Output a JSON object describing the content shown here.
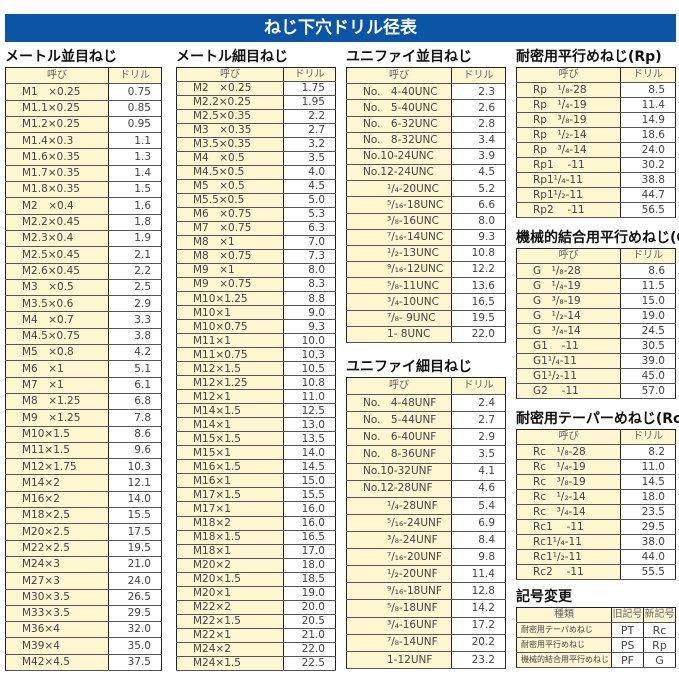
{
  "title": "ねじ下穴ドリル径表",
  "tables": [
    {
      "id": "metric-coarse",
      "title": "メートル並目ねじ",
      "headers": [
        "呼び",
        "ドリル"
      ],
      "rows": [
        [
          "M1　×0.25",
          "0.75"
        ],
        [
          "M1.1×0.25",
          "0.85"
        ],
        [
          "M1.2×0.25",
          "0.95"
        ],
        [
          "M1.4×0.3",
          "1.1"
        ],
        [
          "M1.6×0.35",
          "1.3"
        ],
        [
          "M1.7×0.35",
          "1.4"
        ],
        [
          "M1.8×0.35",
          "1.5"
        ],
        [
          "M2　×0.4",
          "1.6"
        ],
        [
          "M2.2×0.45",
          "1.8"
        ],
        [
          "M2.3×0.4",
          "1.9"
        ],
        [
          "M2.5×0.45",
          "2.1"
        ],
        [
          "M2.6×0.45",
          "2.2"
        ],
        [
          "M3　×0.5",
          "2.5"
        ],
        [
          "M3.5×0.6",
          "2.9"
        ],
        [
          "M4　×0.7",
          "3.3"
        ],
        [
          "M4.5×0.75",
          "3.8"
        ],
        [
          "M5　×0.8",
          "4.2"
        ],
        [
          "M6　×1",
          "5.1"
        ],
        [
          "M7　×1",
          "6.1"
        ],
        [
          "M8　×1.25",
          "6.8"
        ],
        [
          "M9　×1.25",
          "7.8"
        ],
        [
          "M10×1.5",
          "8.6"
        ],
        [
          "M11×1.5",
          "9.6"
        ],
        [
          "M12×1.75",
          "10.3"
        ],
        [
          "M14×2",
          "12.1"
        ],
        [
          "M16×2",
          "14.0"
        ],
        [
          "M18×2.5",
          "15.5"
        ],
        [
          "M20×2.5",
          "17.5"
        ],
        [
          "M22×2.5",
          "19.5"
        ],
        [
          "M24×3",
          "21.0"
        ],
        [
          "M27×3",
          "24.0"
        ],
        [
          "M30×3.5",
          "26.5"
        ],
        [
          "M33×3.5",
          "29.5"
        ],
        [
          "M36×4",
          "32.0"
        ],
        [
          "M39×4",
          "35.0"
        ],
        [
          "M42×4.5",
          "37.5"
        ]
      ]
    },
    {
      "id": "metric-fine",
      "title": "メートル細目ねじ",
      "headers": [
        "呼び",
        "ドリル"
      ],
      "rows": [
        [
          "M2　×0.25",
          "1.75"
        ],
        [
          "M2.2×0.25",
          "1.95"
        ],
        [
          "M2.5×0.35",
          "2.2"
        ],
        [
          "M3　×0.35",
          "2.7"
        ],
        [
          "M3.5×0.35",
          "3.2"
        ],
        [
          "M4　×0.5",
          "3.5"
        ],
        [
          "M4.5×0.5",
          "4.0"
        ],
        [
          "M5　×0.5",
          "4.5"
        ],
        [
          "M5.5×0.5",
          "5.0"
        ],
        [
          "M6　×0.75",
          "5.3"
        ],
        [
          "M7　×0.75",
          "6.3"
        ],
        [
          "M8　×1",
          "7.0"
        ],
        [
          "M8　×0.75",
          "7.3"
        ],
        [
          "M9　×1",
          "8.0"
        ],
        [
          "M9　×0.75",
          "8.3"
        ],
        [
          "M10×1.25",
          "8.8"
        ],
        [
          "M10×1",
          "9.0"
        ],
        [
          "M10×0.75",
          "9.3"
        ],
        [
          "M11×1",
          "10.0"
        ],
        [
          "M11×0.75",
          "10.3"
        ],
        [
          "M12×1.5",
          "10.5"
        ],
        [
          "M12×1.25",
          "10.8"
        ],
        [
          "M12×1",
          "11.0"
        ],
        [
          "M14×1.5",
          "12.5"
        ],
        [
          "M14×1",
          "13.0"
        ],
        [
          "M15×1.5",
          "13.5"
        ],
        [
          "M15×1",
          "14.0"
        ],
        [
          "M16×1.5",
          "14.5"
        ],
        [
          "M16×1",
          "15.0"
        ],
        [
          "M17×1.5",
          "15.5"
        ],
        [
          "M17×1",
          "16.0"
        ],
        [
          "M18×2",
          "16.0"
        ],
        [
          "M18×1.5",
          "16.5"
        ],
        [
          "M18×1",
          "17.0"
        ],
        [
          "M20×2",
          "18.0"
        ],
        [
          "M20×1.5",
          "18.5"
        ],
        [
          "M20×1",
          "19.0"
        ],
        [
          "M22×2",
          "20.0"
        ],
        [
          "M22×1.5",
          "20.5"
        ],
        [
          "M22×1",
          "21.0"
        ],
        [
          "M24×2",
          "22.0"
        ],
        [
          "M24×1.5",
          "22.5"
        ]
      ]
    },
    {
      "id": "unc",
      "title": "ユニファイ並目ねじ",
      "headers": [
        "呼び",
        "ドリル"
      ],
      "rows": [
        [
          "No.　4-40UNC",
          "2.3"
        ],
        [
          "No.　5-40UNC",
          "2.6"
        ],
        [
          "No.　6-32UNC",
          "2.8"
        ],
        [
          "No.　8-32UNC",
          "3.4"
        ],
        [
          "No.10-24UNC",
          "3.9"
        ],
        [
          "No.12-24UNC",
          "4.5"
        ],
        [
          "¹/₄-20UNC",
          "5.2"
        ],
        [
          "⁵/₁₆-18UNC",
          "6.6"
        ],
        [
          "³/₈-16UNC",
          "8.0"
        ],
        [
          "⁷/₁₆-14UNC",
          "9.3"
        ],
        [
          "¹/₂-13UNC",
          "10.8"
        ],
        [
          "⁹/₁₆-12UNC",
          "12.2"
        ],
        [
          "⁵/₈-11UNC",
          "13.6"
        ],
        [
          "³/₄-10UNC",
          "16.5"
        ],
        [
          "⁷/₈- 9UNC",
          "19.5"
        ],
        [
          "1- 8UNC",
          "22.0"
        ]
      ]
    },
    {
      "id": "unf",
      "title": "ユニファイ細目ねじ",
      "headers": [
        "呼び",
        "ドリル"
      ],
      "rows": [
        [
          "No.　4-48UNF",
          "2.4"
        ],
        [
          "No.　5-44UNF",
          "2.7"
        ],
        [
          "No.　6-40UNF",
          "2.9"
        ],
        [
          "No.　8-36UNF",
          "3.5"
        ],
        [
          "No.10-32UNF",
          "4.1"
        ],
        [
          "No.12-28UNF",
          "4.6"
        ],
        [
          "¹/₄-28UNF",
          "5.4"
        ],
        [
          "⁵/₁₆-24UNF",
          "6.9"
        ],
        [
          "³/₈-24UNF",
          "8.4"
        ],
        [
          "⁷/₁₆-20UNF",
          "9.8"
        ],
        [
          "¹/₂-20UNF",
          "11.4"
        ],
        [
          "⁹/₁₆-18UNF",
          "12.8"
        ],
        [
          "⁵/₈-18UNF",
          "14.2"
        ],
        [
          "³/₄-16UNF",
          "17.2"
        ],
        [
          "⁷/₈-14UNF",
          "20.2"
        ],
        [
          "1-12UNF",
          "23.2"
        ]
      ]
    },
    {
      "id": "rp",
      "title": "耐密用平行めねじ(Rp)",
      "headers": [
        "呼び",
        "ドリル"
      ],
      "rows": [
        [
          "Rp　¹/₈-28",
          "8.5"
        ],
        [
          "Rp　¹/₄-19",
          "11.4"
        ],
        [
          "Rp　³/₈-19",
          "14.9"
        ],
        [
          "Rp　¹/₂-14",
          "18.6"
        ],
        [
          "Rp　³/₄-14",
          "24.0"
        ],
        [
          "Rp1　 -11",
          "30.2"
        ],
        [
          "Rp1¹/₄-11",
          "38.8"
        ],
        [
          "Rp1¹/₂-11",
          "44.7"
        ],
        [
          "Rp2　 -11",
          "56.5"
        ]
      ]
    },
    {
      "id": "g",
      "title": "機械的結合用平行めねじ(G)",
      "headers": [
        "呼び",
        "ドリル"
      ],
      "rows": [
        [
          "G　¹/₈-28",
          "8.6"
        ],
        [
          "G　¹/₄-19",
          "11.5"
        ],
        [
          "G　³/₈-19",
          "15.0"
        ],
        [
          "G　¹/₂-14",
          "19.0"
        ],
        [
          "G　³/₄-14",
          "24.5"
        ],
        [
          "G1　 -11",
          "30.5"
        ],
        [
          "G1¹/₄-11",
          "39.0"
        ],
        [
          "G1¹/₂-11",
          "45.0"
        ],
        [
          "G2　 -11",
          "57.0"
        ]
      ]
    },
    {
      "id": "rc",
      "title": "耐密用テーパーめねじ(Rc)",
      "headers": [
        "呼び",
        "ドリル"
      ],
      "rows": [
        [
          "Rc　¹/₈-28",
          "8.2"
        ],
        [
          "Rc　¹/₄-19",
          "11.0"
        ],
        [
          "Rc　³/₈-19",
          "14.5"
        ],
        [
          "Rc　¹/₂-14",
          "18.0"
        ],
        [
          "Rc　³/₄-14",
          "23.5"
        ],
        [
          "Rc1　 -11",
          "29.5"
        ],
        [
          "Rc1¹/₄-11",
          "38.0"
        ],
        [
          "Rc1¹/₂-11",
          "44.0"
        ],
        [
          "Rc2　 -11",
          "55.5"
        ]
      ]
    }
  ],
  "symbols": {
    "title": "記号変更",
    "headers": [
      "種類",
      "旧記号",
      "新記号"
    ],
    "rows": [
      [
        "耐密用テーパめねじ",
        "PT",
        "Rc"
      ],
      [
        "耐密用平行めねじ",
        "PS",
        "Rp"
      ],
      [
        "機械的結合用平行めねじ",
        "PF",
        "G"
      ]
    ]
  },
  "colors": {
    "banner": "#0b55a6",
    "name_cell": "#fff6d2"
  }
}
